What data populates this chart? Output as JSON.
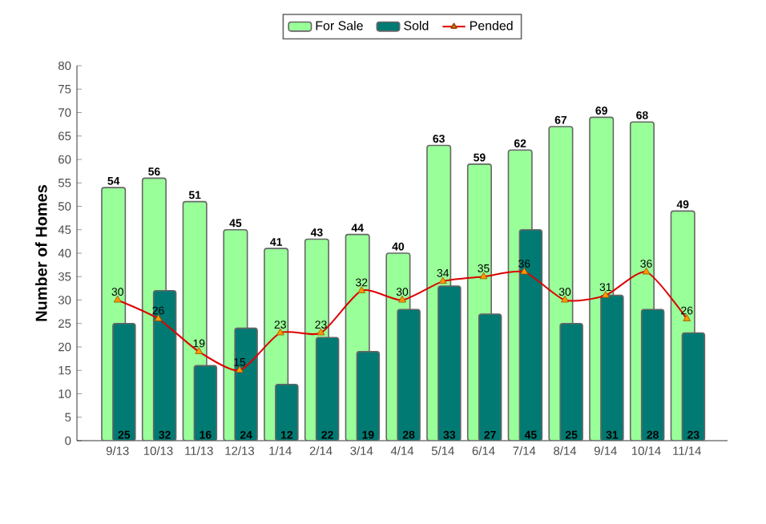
{
  "chart_data": {
    "type": "bar",
    "ylabel": "Number of Homes",
    "categories": [
      "9/13",
      "10/13",
      "11/13",
      "12/13",
      "1/14",
      "2/14",
      "3/14",
      "4/14",
      "5/14",
      "6/14",
      "7/14",
      "8/14",
      "9/14",
      "10/14",
      "11/14"
    ],
    "series": [
      {
        "name": "For Sale",
        "color": "#99ff99",
        "values": [
          54,
          56,
          51,
          45,
          41,
          43,
          44,
          40,
          63,
          59,
          62,
          67,
          69,
          68,
          49
        ]
      },
      {
        "name": "Sold",
        "color": "#007a73",
        "values": [
          25,
          32,
          16,
          24,
          12,
          22,
          19,
          28,
          33,
          27,
          45,
          25,
          31,
          28,
          23
        ]
      },
      {
        "name": "Pended",
        "type": "line",
        "color": "#dd0000",
        "marker": "triangle",
        "values": [
          30,
          26,
          19,
          15,
          23,
          23,
          32,
          30,
          34,
          35,
          36,
          30,
          31,
          36,
          26
        ]
      }
    ],
    "ylim": [
      0,
      80
    ],
    "yticks": [
      0,
      5,
      10,
      15,
      20,
      25,
      30,
      35,
      40,
      45,
      50,
      55,
      60,
      65,
      70,
      75,
      80
    ],
    "grid": false,
    "legend": "top",
    "data_labels": true
  }
}
